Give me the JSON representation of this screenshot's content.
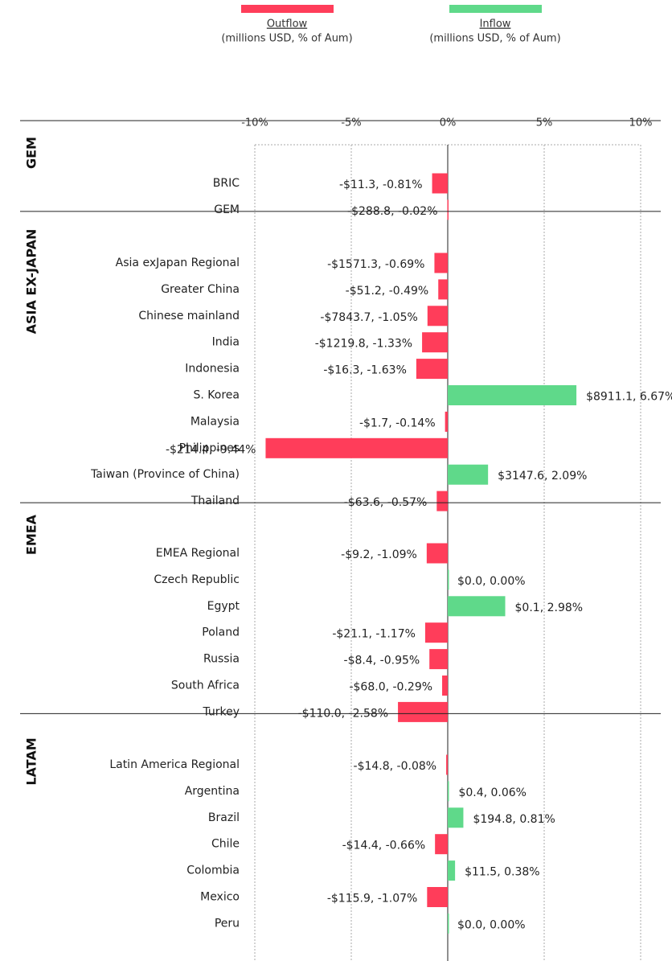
{
  "chart_data": {
    "type": "bar",
    "orientation": "horizontal",
    "legend": [
      {
        "name": "Outflow",
        "subtitle": "(millions USD, % of Aum)",
        "color": "#ff3d5a"
      },
      {
        "name": "Inflow",
        "subtitle": "(millions USD, % of Aum)",
        "color": "#5fd98a"
      }
    ],
    "xlim": [
      -10,
      10
    ],
    "xticks": [
      {
        "value": -10,
        "label": "-10%"
      },
      {
        "value": -5,
        "label": "-5%"
      },
      {
        "value": 0,
        "label": "0%"
      },
      {
        "value": 5,
        "label": "5%"
      },
      {
        "value": 10,
        "label": "10%"
      }
    ],
    "grid": true,
    "groups": [
      {
        "name": "GEM",
        "categories": [
          "BRIC",
          "GEM"
        ],
        "values": [
          -0.81,
          -0.02
        ],
        "value_labels": [
          "-$11.3, -0.81%",
          "-$288.8, -0.02%"
        ]
      },
      {
        "name": "ASIA EX-JAPAN",
        "categories": [
          "Asia exJapan Regional",
          "Greater China",
          "Chinese mainland",
          "India",
          "Indonesia",
          "S. Korea",
          "Malaysia",
          "Philippines",
          "Taiwan (Province of China)",
          "Thailand"
        ],
        "values": [
          -0.69,
          -0.49,
          -1.05,
          -1.33,
          -1.63,
          6.67,
          -0.14,
          -9.44,
          2.09,
          -0.57
        ],
        "value_labels": [
          "-$1571.3, -0.69%",
          "-$51.2, -0.49%",
          "-$7843.7, -1.05%",
          "-$1219.8, -1.33%",
          "-$16.3, -1.63%",
          "$8911.1, 6.67%",
          "-$1.7, -0.14%",
          "-$214.4, -9.44%",
          "$3147.6, 2.09%",
          "-$63.6, -0.57%"
        ]
      },
      {
        "name": "EMEA",
        "categories": [
          "EMEA Regional",
          "Czech Republic",
          "Egypt",
          "Poland",
          "Russia",
          "South Africa",
          "Turkey"
        ],
        "values": [
          -1.09,
          0,
          2.98,
          -1.17,
          -0.95,
          -0.29,
          -2.58
        ],
        "value_labels": [
          "-$9.2, -1.09%",
          "$0.0, 0.00%",
          "$0.1, 2.98%",
          "-$21.1, -1.17%",
          "-$8.4, -0.95%",
          "-$68.0, -0.29%",
          "-$110.0, -2.58%"
        ]
      },
      {
        "name": "LATAM",
        "categories": [
          "Latin America Regional",
          "Argentina",
          "Brazil",
          "Chile",
          "Colombia",
          "Mexico",
          "Peru"
        ],
        "values": [
          -0.08,
          0.06,
          0.81,
          -0.66,
          0.38,
          -1.07,
          0
        ],
        "value_labels": [
          "-$14.8, -0.08%",
          "$0.4, 0.06%",
          "$194.8, 0.81%",
          "-$14.4, -0.66%",
          "$11.5, 0.38%",
          "-$115.9, -1.07%",
          "$0.0, 0.00%"
        ]
      }
    ]
  }
}
